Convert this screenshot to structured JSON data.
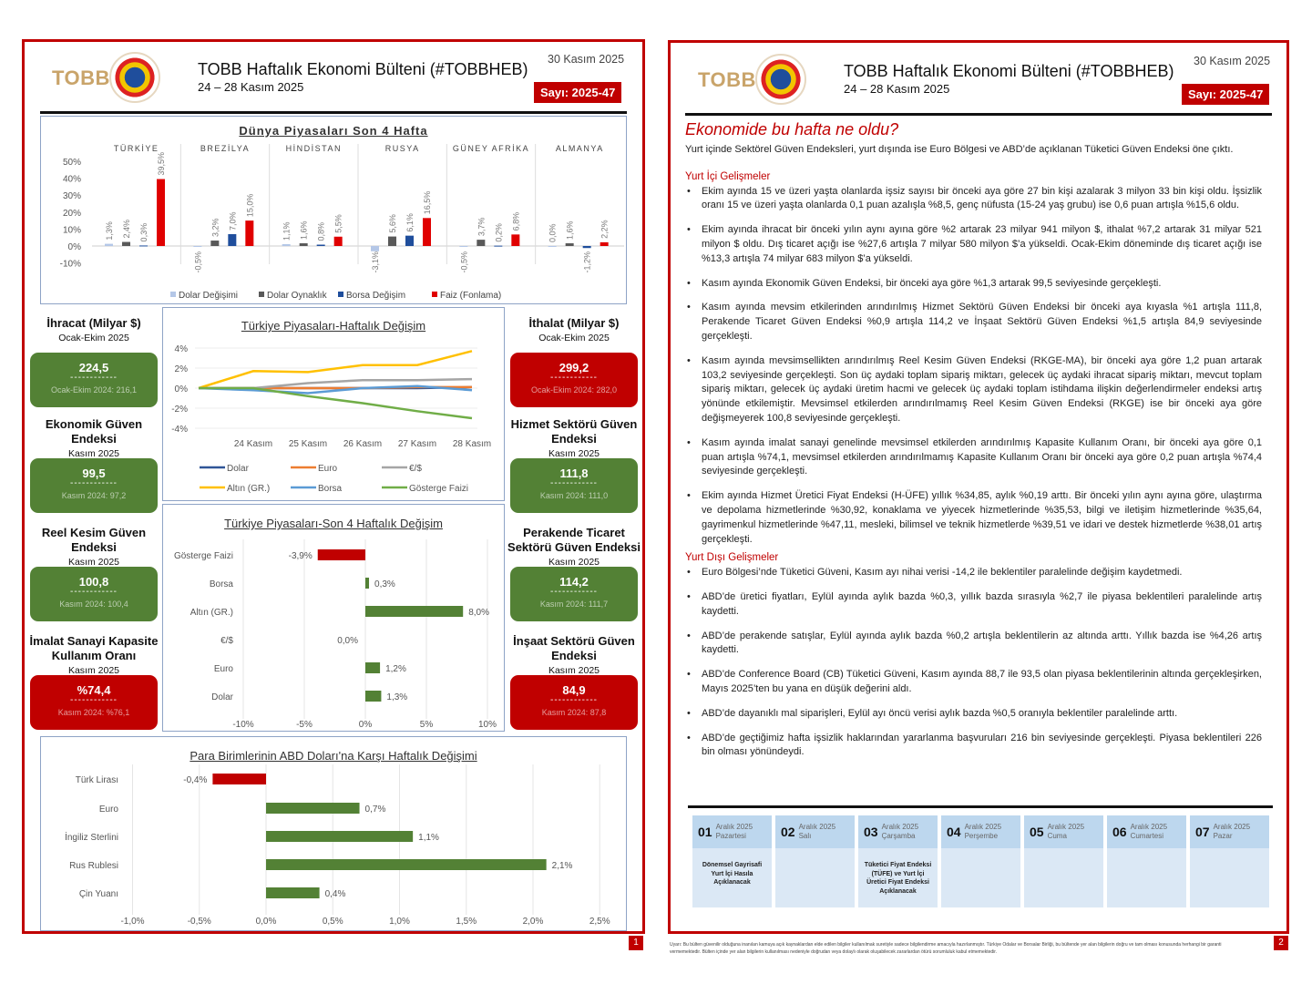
{
  "header": {
    "logo": "TOBB",
    "title": "TOBB Haftalık Ekonomi Bülteni (#TOBBHEB)",
    "week": "24 – 28 Kasım 2025",
    "date": "30 Kasım 2025",
    "issue": "Sayı: 2025-47"
  },
  "kpis_left": [
    {
      "title": "İhracat (Milyar $)",
      "period": "Ocak-Ekim 2025",
      "value": "224,5",
      "dashes": "------------",
      "prev": "Ocak-Ekim 2024: 216,1",
      "color": "green"
    },
    {
      "title": "Ekonomik Güven Endeksi",
      "period": "Kasım 2025",
      "value": "99,5",
      "dashes": "------------",
      "prev": "Kasım 2024: 97,2",
      "color": "green"
    },
    {
      "title": "Reel Kesim Güven Endeksi",
      "period": "Kasım 2025",
      "value": "100,8",
      "dashes": "------------",
      "prev": "Kasım 2024: 100,4",
      "color": "green"
    },
    {
      "title": "İmalat Sanayi Kapasite Kullanım Oranı",
      "period": "Kasım 2025",
      "value": "%74,4",
      "dashes": "------------",
      "prev": "Kasım 2024: %76,1",
      "color": "red"
    }
  ],
  "kpis_right": [
    {
      "title": "İthalat (Milyar $)",
      "period": "Ocak-Ekim 2025",
      "value": "299,2",
      "dashes": "------------",
      "prev": "Ocak-Ekim 2024: 282,0",
      "color": "red"
    },
    {
      "title": "Hizmet Sektörü Güven Endeksi",
      "period": "Kasım 2025",
      "value": "111,8",
      "dashes": "------------",
      "prev": "Kasım 2024: 111,0",
      "color": "green"
    },
    {
      "title": "Perakende Ticaret Sektörü Güven Endeksi",
      "period": "Kasım 2025",
      "value": "114,2",
      "dashes": "------------",
      "prev": "Kasım 2024: 111,7",
      "color": "green"
    },
    {
      "title": "İnşaat Sektörü Güven Endeksi",
      "period": "Kasım 2025",
      "value": "84,9",
      "dashes": "------------",
      "prev": "Kasım 2024: 87,8",
      "color": "red"
    }
  ],
  "chart_data": [
    {
      "type": "bar",
      "title": "Dünya Piyasaları Son 4 Hafta",
      "categories": [
        "TÜRKİYE",
        "BREZİLYA",
        "HİNDİSTAN",
        "RUSYA",
        "GÜNEY AFRİKA",
        "ALMANYA"
      ],
      "series": [
        {
          "name": "Dolar Değişimi",
          "color": "#b4c7e7",
          "values": [
            1.3,
            -0.5,
            1.1,
            -3.1,
            -0.5,
            0.0
          ],
          "labels": [
            "1,3%",
            "-0,5%",
            "1,1%",
            "-3,1%",
            "-0,5%",
            "0,0%"
          ]
        },
        {
          "name": "Dolar Oynaklık",
          "color": "#595959",
          "values": [
            2.4,
            3.2,
            1.6,
            5.6,
            3.7,
            1.6
          ],
          "labels": [
            "2,4%",
            "3,2%",
            "1,6%",
            "5,6%",
            "3,7%",
            "1,6%"
          ]
        },
        {
          "name": "Borsa Değişim",
          "color": "#1f4e9c",
          "values": [
            0.3,
            7.0,
            0.8,
            6.1,
            0.2,
            -1.2
          ],
          "labels": [
            "0,3%",
            "7,0%",
            "0,8%",
            "6,1%",
            "0,2%",
            "-1,2%"
          ]
        },
        {
          "name": "Faiz (Fonlama)",
          "color": "#e00000",
          "values": [
            39.5,
            15.0,
            5.5,
            16.5,
            6.8,
            2.2
          ],
          "labels": [
            "39,5%",
            "15,0%",
            "5,5%",
            "16,5%",
            "6,8%",
            "2,2%"
          ]
        }
      ],
      "yticks": [
        "50%",
        "40%",
        "30%",
        "20%",
        "10%",
        "0%",
        "-10%"
      ],
      "ylim": [
        -10,
        50
      ],
      "legend": "bottom"
    },
    {
      "type": "line",
      "title": "Türkiye Piyasaları-Haftalık Değişim",
      "x": [
        "",
        "24 Kasım",
        "25 Kasım",
        "26 Kasım",
        "27 Kasım",
        "28 Kasım"
      ],
      "series": [
        {
          "name": "Dolar",
          "color": "#2f5597",
          "values": [
            0,
            0,
            0,
            0,
            0,
            0.1
          ]
        },
        {
          "name": "Euro",
          "color": "#ed7d31",
          "values": [
            0,
            0,
            0,
            0,
            0.1,
            0.1
          ]
        },
        {
          "name": "€/$",
          "color": "#a5a5a5",
          "values": [
            0,
            0,
            0.5,
            0.8,
            0.8,
            0.9
          ]
        },
        {
          "name": "Altın (GR.)",
          "color": "#ffc000",
          "values": [
            0,
            1.7,
            1.6,
            2.3,
            2.3,
            3.7
          ]
        },
        {
          "name": "Borsa",
          "color": "#5b9bd5",
          "values": [
            0,
            -0.2,
            -0.5,
            0,
            0.2,
            -0.2
          ]
        },
        {
          "name": "Gösterge Faizi",
          "color": "#70ad47",
          "values": [
            0,
            0,
            -0.8,
            -1.5,
            -2.3,
            -3.0
          ]
        }
      ],
      "yticks": [
        "4%",
        "2%",
        "0%",
        "-2%",
        "-4%"
      ],
      "ylim": [
        -4,
        4
      ],
      "legend": "bottom"
    },
    {
      "type": "bar",
      "orientation": "horizontal",
      "title": "Türkiye Piyasaları-Son 4 Haftalık Değişim",
      "categories": [
        "Gösterge Faizi",
        "Borsa",
        "Altın (GR.)",
        "€/$",
        "Euro",
        "Dolar"
      ],
      "values": [
        -3.9,
        0.3,
        8.0,
        0.0,
        1.2,
        1.3
      ],
      "labels": [
        "-3,9%",
        "0,3%",
        "8,0%",
        "0,0%",
        "1,2%",
        "1,3%"
      ],
      "xticks": [
        "-10%",
        "-5%",
        "0%",
        "5%",
        "10%"
      ],
      "xlim": [
        -10,
        10
      ]
    },
    {
      "type": "bar",
      "orientation": "horizontal",
      "title": "Para Birimlerinin ABD Doları'na Karşı Haftalık Değişimi",
      "categories": [
        "Türk Lirası",
        "Euro",
        "İngiliz Sterlini",
        "Rus Rublesi",
        "Çin Yuanı"
      ],
      "values": [
        -0.4,
        0.7,
        1.1,
        2.1,
        0.4
      ],
      "labels": [
        "-0,4%",
        "0,7%",
        "1,1%",
        "2,1%",
        "0,4%"
      ],
      "xticks": [
        "-1,0%",
        "-0,5%",
        "0,0%",
        "0,5%",
        "1,0%",
        "1,5%",
        "2,0%",
        "2,5%"
      ],
      "xlim": [
        -1,
        2.5
      ]
    }
  ],
  "page2": {
    "title": "Ekonomide bu hafta ne oldu?",
    "intro": "Yurt içinde Sektörel Güven Endeksleri, yurt dışında ise Euro Bölgesi ve ABD’de açıklanan Tüketici Güven Endeksi öne çıktı.",
    "domestic_heading": "Yurt İçi Gelişmeler",
    "domestic": [
      "Ekim ayında 15 ve üzeri yaşta olanlarda işsiz sayısı bir önceki aya göre 27 bin kişi azalarak 3 milyon 33 bin kişi oldu. İşsizlik oranı 15 ve üzeri yaşta olanlarda 0,1 puan azalışla %8,5, genç nüfusta (15-24 yaş grubu) ise 0,6 puan artışla %15,6 oldu.",
      "Ekim ayında ihracat bir önceki yılın aynı ayına göre %2 artarak 23 milyar 941 milyon $, ithalat %7,2 artarak 31 milyar 521 milyon $ oldu. Dış ticaret açığı ise %27,6 artışla 7 milyar 580 milyon $’a yükseldi. Ocak-Ekim döneminde dış ticaret açığı ise %13,3 artışla 74 milyar 683 milyon $’a yükseldi.",
      "Kasım ayında Ekonomik Güven Endeksi, bir önceki aya göre %1,3 artarak 99,5 seviyesinde gerçekleşti.",
      "Kasım ayında mevsim etkilerinden arındırılmış Hizmet Sektörü Güven Endeksi bir önceki aya kıyasla %1 artışla 111,8, Perakende Ticaret Güven Endeksi %0,9 artışla 114,2 ve İnşaat Sektörü Güven Endeksi %1,5 artışla 84,9 seviyesinde gerçekleşti.",
      "Kasım ayında mevsimsellikten arındırılmış Reel Kesim Güven Endeksi (RKGE-MA), bir önceki aya göre 1,2 puan artarak 103,2 seviyesinde gerçekleşti. Son üç aydaki toplam sipariş miktarı, gelecek üç aydaki ihracat sipariş miktarı, mevcut toplam sipariş miktarı, gelecek üç aydaki üretim hacmi ve gelecek üç aydaki toplam istihdama ilişkin değerlendirmeler endeksi artış yönünde etkilemiştir. Mevsimsel etkilerden arındırılmamış Reel Kesim Güven Endeksi (RKGE) ise bir önceki aya göre değişmeyerek 100,8 seviyesinde gerçekleşti.",
      "Kasım ayında imalat sanayi genelinde mevsimsel etkilerden arındırılmış Kapasite Kullanım Oranı, bir önceki aya göre 0,1 puan artışla %74,1, mevsimsel etkilerden arındırılmamış Kapasite Kullanım Oranı bir önceki aya göre 0,2 puan artışla %74,4 seviyesinde gerçekleşti.",
      "Ekim ayında Hizmet Üretici Fiyat Endeksi (H-ÜFE) yıllık %34,85, aylık %0,19 arttı. Bir önceki yılın aynı ayına göre, ulaştırma ve depolama hizmetlerinde %30,92, konaklama ve yiyecek hizmetlerinde %35,53, bilgi ve iletişim hizmetlerinde %35,64, gayrimenkul hizmetlerinde %47,11, mesleki, bilimsel ve teknik hizmetlerde %39,51 ve idari ve destek hizmetlerde %38,01 artış gerçekleşti."
    ],
    "foreign_heading": "Yurt Dışı Gelişmeler",
    "foreign": [
      "Euro Bölgesi’nde Tüketici Güveni, Kasım ayı nihai verisi -14,2 ile beklentiler paralelinde değişim kaydetmedi.",
      "ABD’de üretici fiyatları, Eylül ayında aylık bazda %0,3, yıllık bazda sırasıyla %2,7 ile piyasa beklentileri paralelinde artış kaydetti.",
      "ABD’de perakende satışlar, Eylül ayında aylık bazda %0,2 artışla beklentilerin az altında arttı. Yıllık bazda ise %4,26 artış kaydetti.",
      "ABD’de Conference Board (CB) Tüketici Güveni, Kasım ayında 88,7 ile 93,5 olan piyasa beklentilerinin altında gerçekleşirken, Mayıs 2025’ten bu yana en düşük değerini aldı.",
      "ABD’de dayanıklı mal siparişleri, Eylül ayı öncü verisi aylık bazda %0,5 oranıyla beklentiler paralelinde arttı.",
      "ABD’de geçtiğimiz hafta işsizlik haklarından yararlanma başvuruları 216 bin seviyesinde gerçekleşti. Piyasa beklentileri 226 bin olması yönündeydi."
    ],
    "calendar": [
      {
        "day": "01",
        "month": "Aralık 2025",
        "weekday": "Pazartesi",
        "event": "Dönemsel Gayrisafi Yurt İçi Hasıla Açıklanacak"
      },
      {
        "day": "02",
        "month": "Aralık 2025",
        "weekday": "Salı",
        "event": ""
      },
      {
        "day": "03",
        "month": "Aralık 2025",
        "weekday": "Çarşamba",
        "event": "Tüketici Fiyat Endeksi (TÜFE) ve Yurt İçi Üretici Fiyat Endeksi Açıklanacak"
      },
      {
        "day": "04",
        "month": "Aralık 2025",
        "weekday": "Perşembe",
        "event": ""
      },
      {
        "day": "05",
        "month": "Aralık 2025",
        "weekday": "Cuma",
        "event": ""
      },
      {
        "day": "06",
        "month": "Aralık 2025",
        "weekday": "Cumartesi",
        "event": ""
      },
      {
        "day": "07",
        "month": "Aralık 2025",
        "weekday": "Pazar",
        "event": ""
      }
    ],
    "disclaimer": "Uyarı: Bu bülten güvenilir olduğuna inanılan kamuya açık kaynaklardan elde edilen bilgiler kullanılmak suretiyle sadece bilgilendirme amacıyla hazırlanmıştır. Türkiye Odalar ve Borsalar Birliği, bu bültende yer alan bilgilerin doğru ve tam olması konusunda herhangi bir garanti vermemektedir. Bülten içinde yer alan bilgilerin kullanılması nedeniyle doğrudan veya dolaylı olarak oluşabilecek zararlardan ötürü sorumluluk kabul etmemektedir."
  },
  "page_numbers": [
    "1",
    "2"
  ],
  "colors": {
    "accent": "#c00000",
    "green": "#538135",
    "frame": "#8ea3c6"
  }
}
